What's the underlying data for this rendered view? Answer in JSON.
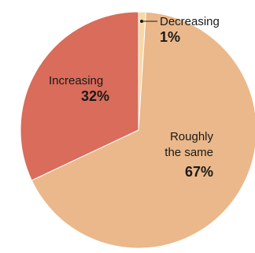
{
  "chart_data": {
    "type": "pie",
    "slices": [
      {
        "label": "Decreasing",
        "value": 1,
        "value_label": "1%",
        "color": "#f5d9a8"
      },
      {
        "label": "Roughly the same",
        "value": 67,
        "value_label": "67%",
        "color": "#eab88a"
      },
      {
        "label": "Increasing",
        "value": 32,
        "value_label": "32%",
        "color": "#d96c5a"
      }
    ],
    "labels": {
      "decreasing": {
        "name": "Decreasing",
        "pct": "1%"
      },
      "same": {
        "line1": "Roughly",
        "line2": "the same",
        "pct": "67%"
      },
      "increasing": {
        "name": "Increasing",
        "pct": "32%"
      }
    }
  }
}
